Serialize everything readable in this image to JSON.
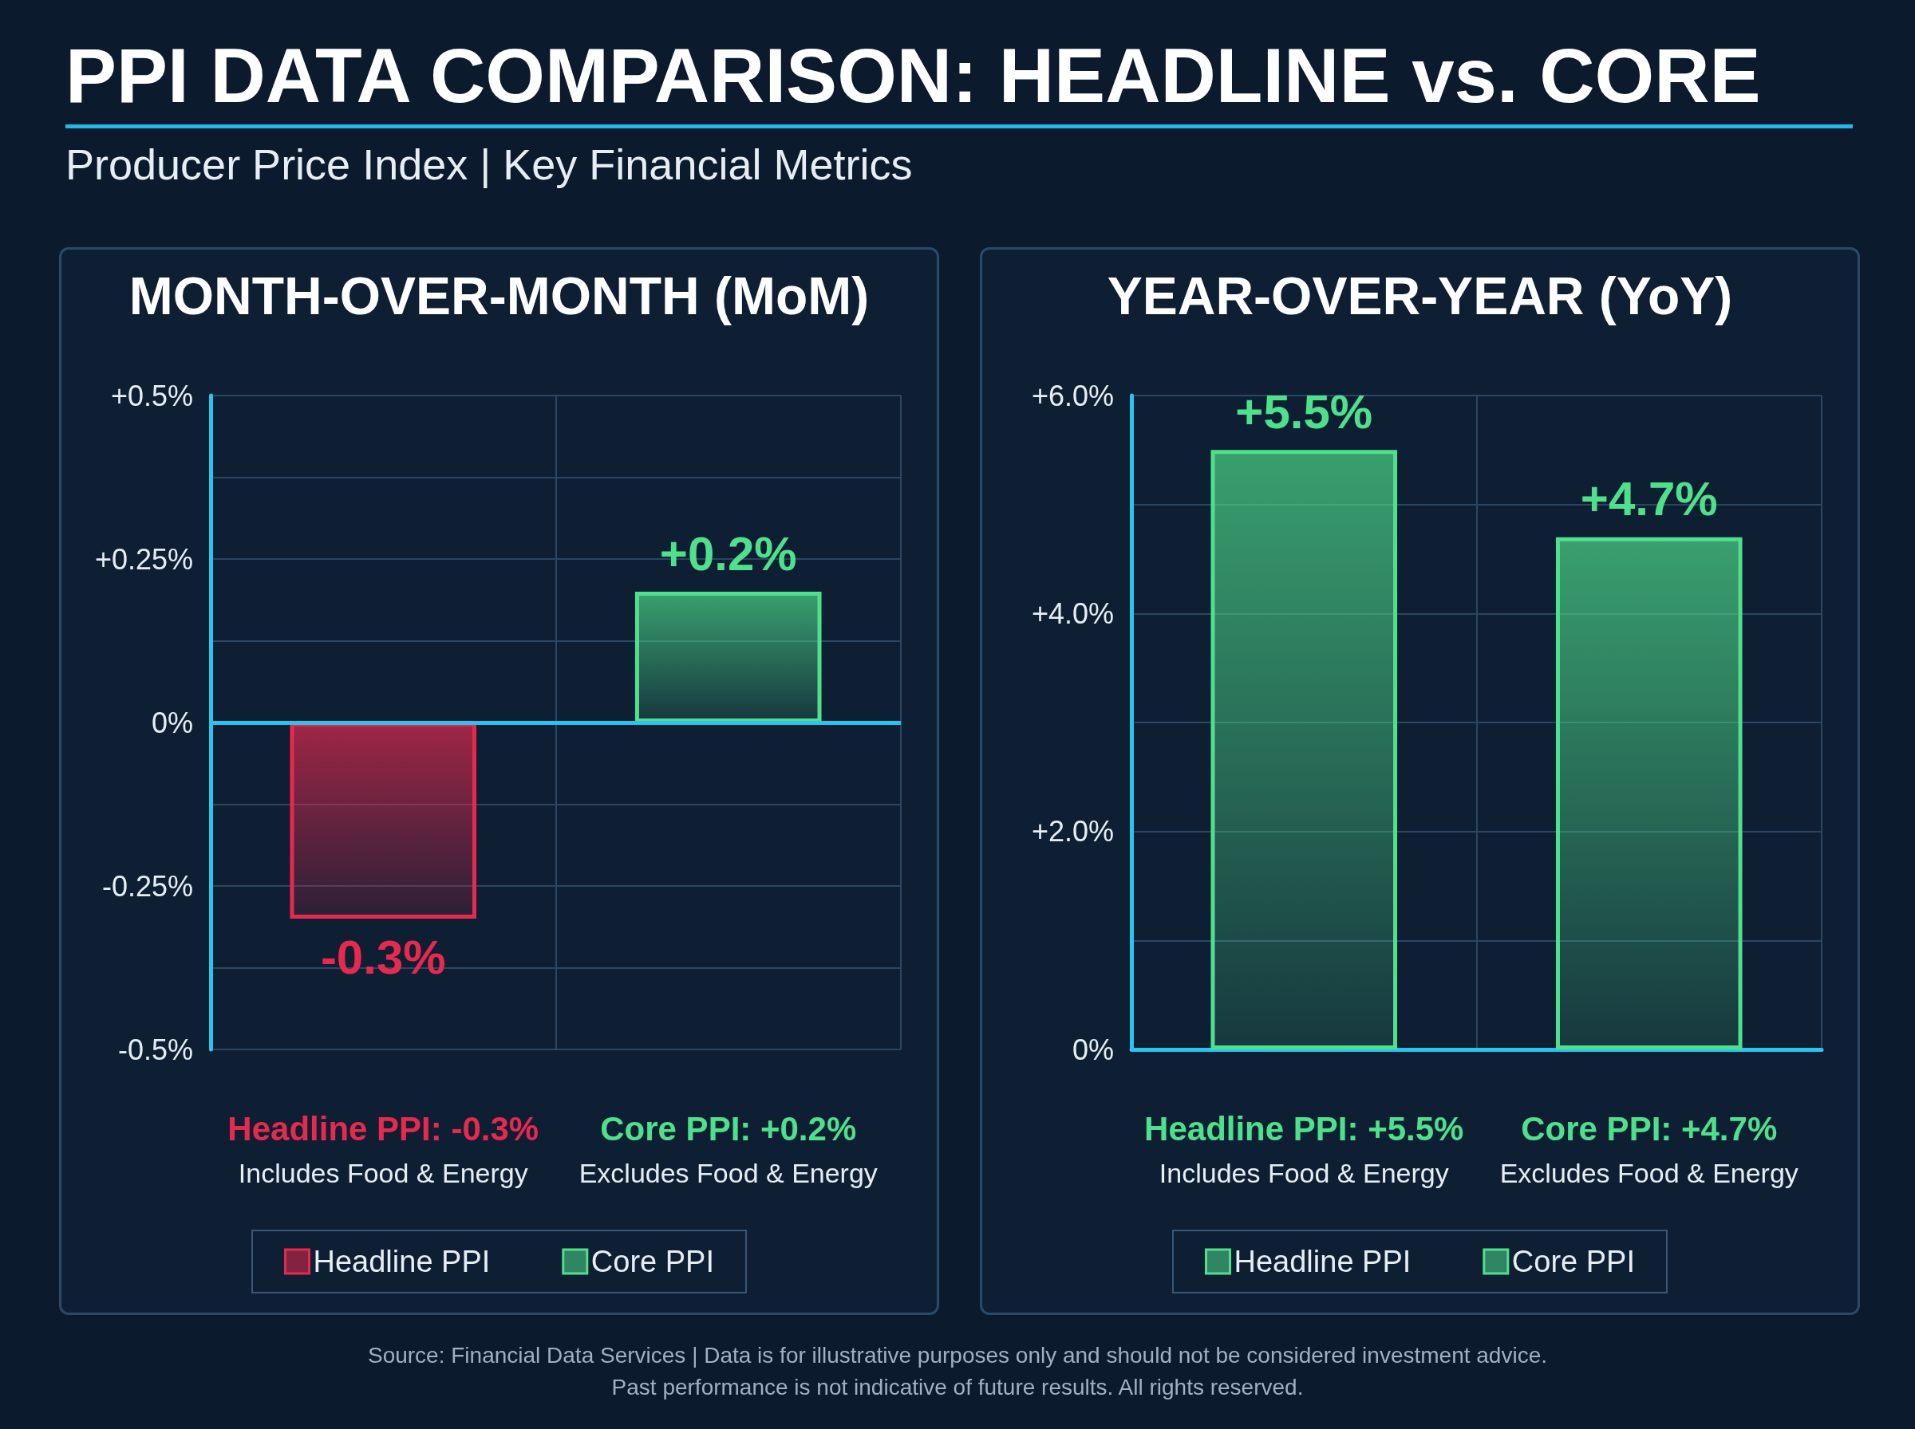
{
  "chart_data": [
    {
      "type": "other",
      "title": "PPI DATA COMPARISON: HEADLINE vs. CORE",
      "subtitle": "Producer Price Index | Key Financial Metrics",
      "annotations": [
        "Source: Financial Data Services | Data is for illustrative purposes only and should not be considered investment advice.",
        "Past performance is not indicative of future results. All rights reserved."
      ]
    },
    {
      "type": "bar",
      "title": "MONTH-OVER-MONTH (MoM)",
      "categories": [
        "Headline PPI: -0.3%\nIncludes Food & Energy",
        "Core PPI: +0.2%\nExcludes Food & Energy"
      ],
      "series": [
        {
          "name": "Headline PPI",
          "color": "#e8294f",
          "values": [
            -0.3,
            null
          ],
          "value_labels": [
            "-0.3%",
            null
          ]
        },
        {
          "name": "Core PPI",
          "color": "#4fe08c",
          "values": [
            null,
            0.2
          ],
          "value_labels": [
            null,
            "+0.2%"
          ]
        }
      ],
      "ylim": [
        -0.5,
        0.5
      ],
      "yticks": [
        {
          "value": -0.5,
          "label": "-0.5%"
        },
        {
          "value": -0.375,
          "label": null
        },
        {
          "value": -0.25,
          "label": "-0.25%"
        },
        {
          "value": -0.125,
          "label": null
        },
        {
          "value": 0,
          "label": "0%"
        },
        {
          "value": 0.125,
          "label": null
        },
        {
          "value": 0.25,
          "label": "+0.25%"
        },
        {
          "value": 0.375,
          "label": null
        },
        {
          "value": 0.5,
          "label": "+0.5%"
        }
      ],
      "grid": true,
      "legend": "bottom",
      "ref_lines": [
        {
          "axis": "y",
          "value": 0,
          "color": "#29c4f0"
        }
      ]
    },
    {
      "type": "bar",
      "title": "YEAR-OVER-YEAR (YoY)",
      "categories": [
        "Headline PPI: +5.5%\nIncludes Food & Energy",
        "Core PPI: +4.7%\nExcludes Food & Energy"
      ],
      "series": [
        {
          "name": "Headline PPI",
          "color": "#4fe08c",
          "values": [
            5.5,
            null
          ],
          "value_labels": [
            "+5.5%",
            null
          ]
        },
        {
          "name": "Core PPI",
          "color": "#4fe08c",
          "values": [
            null,
            4.7
          ],
          "value_labels": [
            null,
            "+4.7%"
          ]
        }
      ],
      "ylim": [
        0,
        6
      ],
      "yticks": [
        {
          "value": 0,
          "label": "0%"
        },
        {
          "value": 1,
          "label": null
        },
        {
          "value": 2,
          "label": "+2.0%"
        },
        {
          "value": 3,
          "label": null
        },
        {
          "value": 4,
          "label": "+4.0%"
        },
        {
          "value": 5,
          "label": null
        },
        {
          "value": 6,
          "label": "+6.0%"
        }
      ],
      "grid": true,
      "legend": "bottom"
    }
  ]
}
